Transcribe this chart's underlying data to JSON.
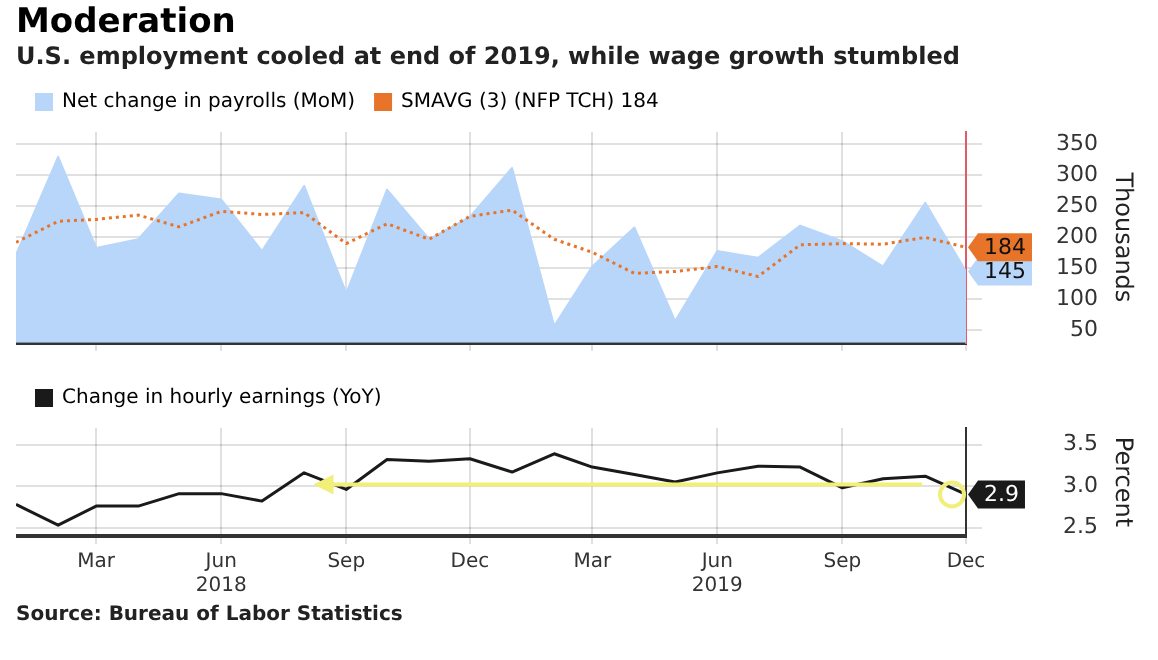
{
  "chart_data": [
    {
      "type": "area",
      "title": "Moderation",
      "subtitle": "U.S. employment cooled at end of 2019, while wage growth stumbled",
      "ylabel": "Thousands",
      "x": [
        "2018-01",
        "2018-02",
        "2018-03",
        "2018-04",
        "2018-05",
        "2018-06",
        "2018-07",
        "2018-08",
        "2018-09",
        "2018-10",
        "2018-11",
        "2018-12",
        "2019-01",
        "2019-02",
        "2019-03",
        "2019-04",
        "2019-05",
        "2019-06",
        "2019-07",
        "2019-08",
        "2019-09",
        "2019-10",
        "2019-11",
        "2019-12"
      ],
      "series": [
        {
          "name": "Net change in payrolls (MoM)",
          "type": "area",
          "color": "#b8d6fa",
          "values": [
            172,
            330,
            183,
            197,
            271,
            261,
            178,
            283,
            110,
            277,
            197,
            233,
            312,
            57,
            153,
            216,
            65,
            178,
            167,
            219,
            194,
            153,
            256,
            145
          ],
          "value_labels": [
            null,
            null,
            null,
            null,
            null,
            null,
            null,
            null,
            null,
            null,
            null,
            null,
            null,
            null,
            null,
            null,
            null,
            null,
            null,
            null,
            null,
            null,
            null,
            "145"
          ]
        },
        {
          "name": "SMAVG (3) (NFP TCH) 184",
          "type": "line",
          "line_style": "dotted",
          "color": "#e8742a",
          "values": [
            192,
            226,
            229,
            236,
            217,
            242,
            237,
            240,
            190,
            222,
            197,
            234,
            244,
            197,
            176,
            142,
            145,
            153,
            137,
            188,
            190,
            189,
            200,
            184
          ],
          "value_labels": [
            null,
            null,
            null,
            null,
            null,
            null,
            null,
            null,
            null,
            null,
            null,
            null,
            null,
            null,
            null,
            null,
            null,
            null,
            null,
            null,
            null,
            null,
            null,
            "184"
          ]
        }
      ],
      "xlim": [
        "2018-01",
        "2019-12"
      ],
      "xticks": [
        {
          "value": "2018-03",
          "label": null
        },
        {
          "value": "2018-06",
          "label": null
        },
        {
          "value": "2018-09",
          "label": null
        },
        {
          "value": "2018-12",
          "label": null
        },
        {
          "value": "2019-03",
          "label": null
        },
        {
          "value": "2019-06",
          "label": null
        },
        {
          "value": "2019-09",
          "label": null
        },
        {
          "value": "2019-12",
          "label": null
        }
      ],
      "ylim": [
        30,
        370
      ],
      "yticks": [
        50,
        100,
        150,
        200,
        250,
        300,
        350
      ],
      "grid": true,
      "legend": "top left",
      "tick_labels": "y"
    },
    {
      "type": "line",
      "ylabel": "Percent",
      "annotations": [
        "Source: Bureau of Labor Statistics"
      ],
      "x": [
        "2018-01",
        "2018-02",
        "2018-03",
        "2018-04",
        "2018-05",
        "2018-06",
        "2018-07",
        "2018-08",
        "2018-09",
        "2018-10",
        "2018-11",
        "2018-12",
        "2019-01",
        "2019-02",
        "2019-03",
        "2019-04",
        "2019-05",
        "2019-06",
        "2019-07",
        "2019-08",
        "2019-09",
        "2019-10",
        "2019-11",
        "2019-12"
      ],
      "series": [
        {
          "name": "Change in hourly earnings (YoY)",
          "color": "#1a1a1a",
          "values": [
            2.78,
            2.53,
            2.76,
            2.76,
            2.91,
            2.91,
            2.82,
            3.16,
            2.96,
            3.32,
            3.3,
            3.33,
            3.17,
            3.39,
            3.23,
            3.14,
            3.05,
            3.16,
            3.24,
            3.23,
            2.98,
            3.09,
            3.12,
            2.9
          ],
          "value_labels": [
            null,
            null,
            null,
            null,
            null,
            null,
            null,
            null,
            null,
            null,
            null,
            null,
            null,
            null,
            null,
            null,
            null,
            null,
            null,
            null,
            null,
            null,
            null,
            "2.9"
          ]
        }
      ],
      "xlim": [
        "2018-01",
        "2019-12"
      ],
      "xticks": [
        {
          "value": "2018-03",
          "label": "Mar"
        },
        {
          "value": "2018-06",
          "label": "Jun\n2018"
        },
        {
          "value": "2018-09",
          "label": "Sep"
        },
        {
          "value": "2018-12",
          "label": "Dec"
        },
        {
          "value": "2019-03",
          "label": "Mar"
        },
        {
          "value": "2019-06",
          "label": "Jun\n2019"
        },
        {
          "value": "2019-09",
          "label": "Sep"
        },
        {
          "value": "2019-12",
          "label": "Dec"
        }
      ],
      "ylim": [
        2.4,
        3.7
      ],
      "yticks": [
        2.5,
        {
          "value": 3,
          "label": "3.0"
        },
        3.5
      ],
      "grid": true,
      "legend": "top left"
    }
  ]
}
